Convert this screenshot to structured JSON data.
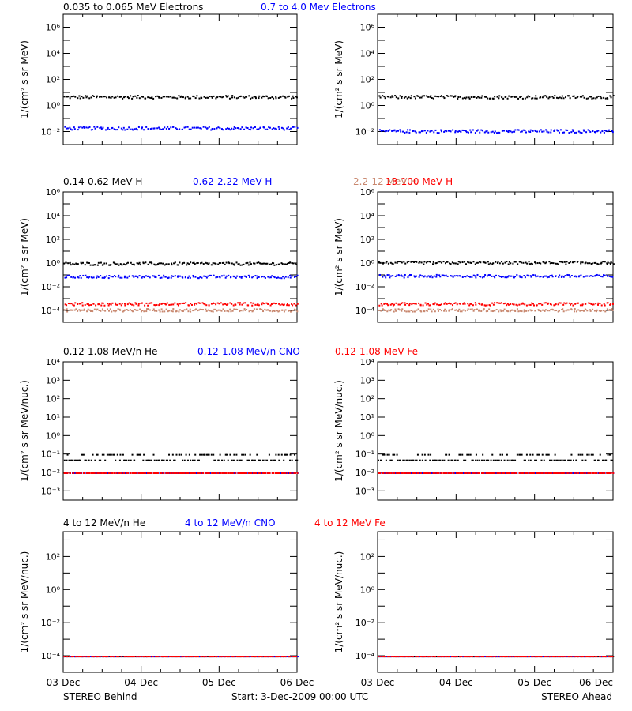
{
  "footer": {
    "left": "STEREO Behind",
    "center": "Start:  3-Dec-2009 00:00 UTC",
    "right": "STEREO Ahead"
  },
  "x_ticks": [
    "03-Dec",
    "04-Dec",
    "05-Dec",
    "06-Dec"
  ],
  "colors": {
    "black": "#000000",
    "blue": "#0000ff",
    "tan": "#c8876e",
    "red": "#ff0000"
  },
  "chart_data": [
    {
      "id": "electrons",
      "type": "scatter",
      "title_parts": [
        {
          "text": "0.035 to 0.065 MeV Electrons",
          "color": "#000000"
        },
        {
          "text": "0.7 to 4.0 Mev Electrons",
          "color": "#0000ff"
        }
      ],
      "ylabel": "1/(cm² s sr MeV)",
      "yscale": "log",
      "ylim_exp": [
        -3,
        7
      ],
      "y_tick_labels": [
        "10⁻²",
        "10⁰",
        "10²",
        "10⁴",
        "10⁶"
      ],
      "y_tick_exps": [
        -2,
        0,
        2,
        4,
        6
      ],
      "xlim_days": [
        0,
        3
      ],
      "behind": {
        "series": [
          {
            "name": "0.035 to 0.065 MeV Electrons",
            "color": "#000000",
            "level": 5.0
          },
          {
            "name": "0.7 to 4.0 Mev Electrons",
            "color": "#0000ff",
            "level": 0.02
          }
        ]
      },
      "ahead": {
        "series": [
          {
            "name": "0.035 to 0.065 MeV Electrons",
            "color": "#000000",
            "level": 5.0
          },
          {
            "name": "0.7 to 4.0 Mev Electrons",
            "color": "#0000ff",
            "level": 0.012
          }
        ]
      }
    },
    {
      "id": "protons",
      "type": "scatter",
      "title_parts": [
        {
          "text": "0.14-0.62 MeV H",
          "color": "#000000"
        },
        {
          "text": "0.62-2.22 MeV H",
          "color": "#0000ff"
        },
        {
          "text": "2.2-12 MeV H",
          "color": "#c8876e"
        },
        {
          "text": "13-100 MeV H",
          "color": "#ff0000"
        }
      ],
      "ylabel": "1/(cm² s sr MeV)",
      "yscale": "log",
      "ylim_exp": [
        -5,
        6
      ],
      "y_tick_labels": [
        "10⁻⁴",
        "10⁻²",
        "10⁰",
        "10²",
        "10⁴",
        "10⁶"
      ],
      "y_tick_exps": [
        -4,
        -2,
        0,
        2,
        4,
        6
      ],
      "xlim_days": [
        0,
        3
      ],
      "behind": {
        "series": [
          {
            "name": "0.14-0.62 MeV H",
            "color": "#000000",
            "level": 1.0
          },
          {
            "name": "0.62-2.22 MeV H",
            "color": "#0000ff",
            "level": 0.08
          },
          {
            "name": "2.2-12 MeV H",
            "color": "#c8876e",
            "level": 0.00012
          },
          {
            "name": "13-100 MeV H",
            "color": "#ff0000",
            "level": 0.0004
          }
        ]
      },
      "ahead": {
        "series": [
          {
            "name": "0.14-0.62 MeV H",
            "color": "#000000",
            "level": 1.2
          },
          {
            "name": "0.62-2.22 MeV H",
            "color": "#0000ff",
            "level": 0.09
          },
          {
            "name": "2.2-12 MeV H",
            "color": "#c8876e",
            "level": 0.00012
          },
          {
            "name": "13-100 MeV H",
            "color": "#ff0000",
            "level": 0.0004
          }
        ]
      }
    },
    {
      "id": "heavy-low",
      "type": "scatter",
      "title_parts": [
        {
          "text": "0.12-1.08 MeV/n He",
          "color": "#000000"
        },
        {
          "text": "0.12-1.08 MeV/n CNO",
          "color": "#0000ff"
        },
        {
          "text": "0.12-1.08 MeV Fe",
          "color": "#ff0000"
        }
      ],
      "ylabel": "1/(cm² s sr MeV/nuc.)",
      "yscale": "log",
      "ylim_exp": [
        -3.5,
        4
      ],
      "y_tick_labels": [
        "10⁻³",
        "10⁻²",
        "10⁻¹",
        "10⁰",
        "10¹",
        "10²",
        "10³",
        "10⁴"
      ],
      "y_tick_exps": [
        -3,
        -2,
        -1,
        0,
        1,
        2,
        3,
        4
      ],
      "xlim_days": [
        0,
        3
      ],
      "behind": {
        "series": [
          {
            "name": "0.12-1.08 MeV/n He",
            "color": "#000000",
            "level": 0.05
          },
          {
            "name": "0.12-1.08 MeV/n CNO",
            "color": "#0000ff",
            "level": 0.01
          },
          {
            "name": "0.12-1.08 MeV Fe",
            "color": "#ff0000",
            "level": 0.01
          }
        ]
      },
      "ahead": {
        "series": [
          {
            "name": "0.12-1.08 MeV/n He",
            "color": "#000000",
            "level": 0.05
          },
          {
            "name": "0.12-1.08 MeV/n CNO",
            "color": "#0000ff",
            "level": 0.01
          },
          {
            "name": "0.12-1.08 MeV Fe",
            "color": "#ff0000",
            "level": 0.01
          }
        ]
      }
    },
    {
      "id": "heavy-high",
      "type": "scatter",
      "title_parts": [
        {
          "text": "4 to 12 MeV/n He",
          "color": "#000000"
        },
        {
          "text": "4 to 12 MeV/n CNO",
          "color": "#0000ff"
        },
        {
          "text": "4 to 12 MeV Fe",
          "color": "#ff0000"
        }
      ],
      "ylabel": "1/(cm² s sr MeV/nuc.)",
      "yscale": "log",
      "ylim_exp": [
        -5,
        3.5
      ],
      "y_tick_labels": [
        "10⁻⁴",
        "10⁻²",
        "10⁰",
        "10²"
      ],
      "y_tick_exps": [
        -4,
        -2,
        0,
        2
      ],
      "xlim_days": [
        0,
        3
      ],
      "behind": {
        "series": [
          {
            "name": "4 to 12 MeV/n He",
            "color": "#000000",
            "level": 0.0001
          },
          {
            "name": "4 to 12 MeV/n CNO",
            "color": "#0000ff",
            "level": 0.0001
          },
          {
            "name": "4 to 12 MeV Fe",
            "color": "#ff0000",
            "level": 0.0001
          }
        ]
      },
      "ahead": {
        "series": [
          {
            "name": "4 to 12 MeV/n He",
            "color": "#000000",
            "level": 0.0001
          },
          {
            "name": "4 to 12 MeV/n CNO",
            "color": "#0000ff",
            "level": 0.0001
          },
          {
            "name": "4 to 12 MeV Fe",
            "color": "#ff0000",
            "level": 0.0001
          }
        ]
      }
    }
  ]
}
